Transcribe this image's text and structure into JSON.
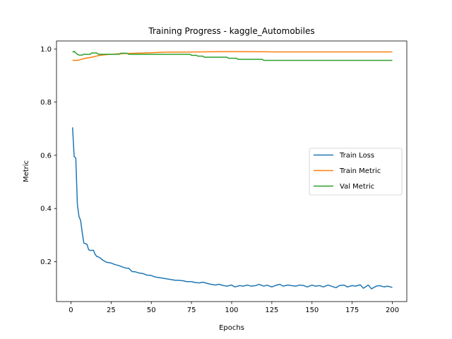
{
  "chart_data": {
    "type": "line",
    "title": "Training Progress - kaggle_Automobiles",
    "xlabel": "Epochs",
    "ylabel": "Metric",
    "xlim": [
      -9,
      209
    ],
    "ylim": [
      0.05,
      1.03
    ],
    "xticks": [
      0,
      25,
      50,
      75,
      100,
      125,
      150,
      175,
      200
    ],
    "yticks": [
      0.2,
      0.4,
      0.6,
      0.8,
      1.0
    ],
    "ytick_labels": [
      "0.2",
      "0.4",
      "0.6",
      "0.8",
      "1.0"
    ],
    "grid": false,
    "legend_placement": "center-right",
    "series": [
      {
        "name": "Train Loss",
        "color": "#1f77b4",
        "x": [
          1,
          2,
          3,
          4,
          5,
          6,
          7,
          8,
          9,
          10,
          11,
          12,
          13,
          14,
          15,
          16,
          17,
          18,
          19,
          20,
          22,
          25,
          27,
          30,
          33,
          35,
          36,
          38,
          40,
          42,
          45,
          47,
          50,
          52,
          55,
          57,
          60,
          62,
          65,
          67,
          70,
          72,
          75,
          77,
          80,
          82,
          85,
          87,
          90,
          92,
          95,
          97,
          100,
          102,
          105,
          107,
          110,
          112,
          115,
          117,
          120,
          122,
          125,
          127,
          130,
          132,
          135,
          137,
          140,
          142,
          145,
          147,
          150,
          152,
          155,
          157,
          160,
          162,
          165,
          167,
          170,
          172,
          175,
          177,
          180,
          182,
          185,
          187,
          190,
          192,
          195,
          197,
          200
        ],
        "y": [
          0.705,
          0.595,
          0.59,
          0.415,
          0.37,
          0.355,
          0.31,
          0.27,
          0.268,
          0.265,
          0.245,
          0.242,
          0.243,
          0.243,
          0.228,
          0.22,
          0.218,
          0.215,
          0.21,
          0.205,
          0.198,
          0.195,
          0.19,
          0.185,
          0.178,
          0.175,
          0.175,
          0.163,
          0.162,
          0.158,
          0.155,
          0.15,
          0.148,
          0.143,
          0.14,
          0.138,
          0.135,
          0.133,
          0.13,
          0.13,
          0.128,
          0.125,
          0.125,
          0.122,
          0.12,
          0.123,
          0.118,
          0.115,
          0.112,
          0.115,
          0.11,
          0.108,
          0.112,
          0.105,
          0.11,
          0.108,
          0.112,
          0.108,
          0.11,
          0.115,
          0.108,
          0.112,
          0.105,
          0.11,
          0.115,
          0.108,
          0.112,
          0.11,
          0.108,
          0.112,
          0.11,
          0.105,
          0.112,
          0.108,
          0.11,
          0.105,
          0.112,
          0.108,
          0.102,
          0.11,
          0.112,
          0.105,
          0.11,
          0.108,
          0.113,
          0.1,
          0.112,
          0.098,
          0.108,
          0.11,
          0.105,
          0.108,
          0.103
        ]
      },
      {
        "name": "Train Metric",
        "color": "#ff7f0e",
        "x": [
          1,
          3,
          5,
          7,
          9,
          12,
          15,
          18,
          21,
          25,
          30,
          40,
          50,
          60,
          70,
          80,
          100,
          125,
          150,
          175,
          200
        ],
        "y": [
          0.957,
          0.957,
          0.958,
          0.962,
          0.965,
          0.968,
          0.972,
          0.976,
          0.978,
          0.98,
          0.982,
          0.984,
          0.986,
          0.988,
          0.988,
          0.989,
          0.99,
          0.989,
          0.989,
          0.989,
          0.989
        ]
      },
      {
        "name": "Val Metric",
        "color": "#2ca02c",
        "x": [
          1,
          2,
          3,
          4,
          5,
          6,
          7,
          8,
          9,
          10,
          12,
          13,
          14,
          16,
          17,
          18,
          30,
          31,
          35,
          36,
          74,
          75,
          78,
          79,
          82,
          83,
          97,
          98,
          103,
          104,
          119,
          120,
          200
        ],
        "y": [
          0.988,
          0.991,
          0.985,
          0.98,
          0.977,
          0.977,
          0.977,
          0.98,
          0.98,
          0.98,
          0.98,
          0.985,
          0.985,
          0.985,
          0.98,
          0.98,
          0.98,
          0.984,
          0.984,
          0.98,
          0.98,
          0.976,
          0.976,
          0.973,
          0.973,
          0.969,
          0.969,
          0.965,
          0.965,
          0.961,
          0.961,
          0.957,
          0.957
        ]
      }
    ]
  }
}
